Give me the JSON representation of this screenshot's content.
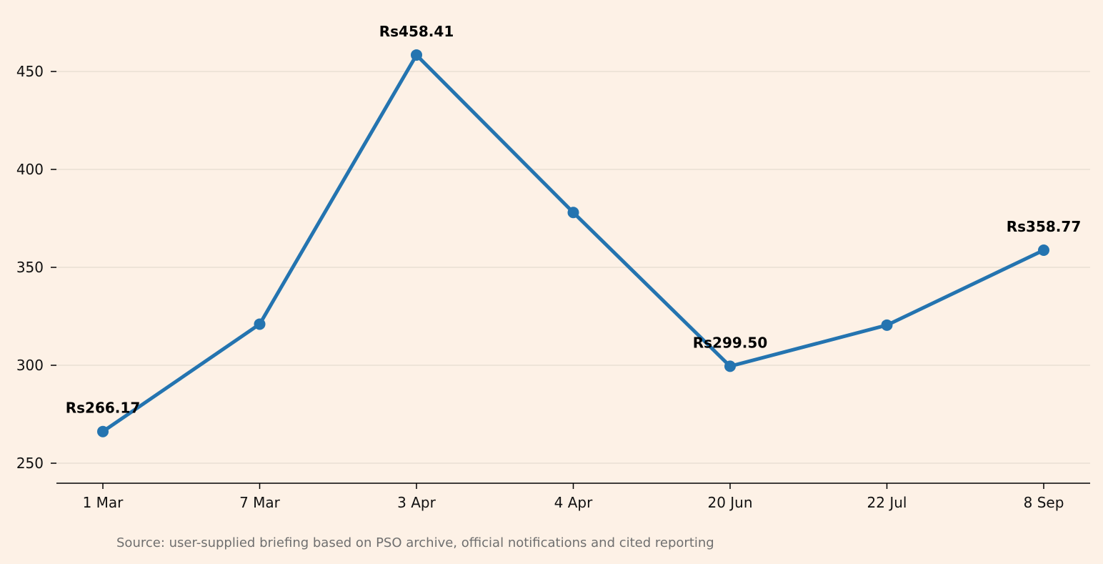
{
  "chart_data": {
    "type": "line",
    "categories": [
      "1 Mar",
      "7 Mar",
      "3 Apr",
      "4 Apr",
      "20 Jun",
      "22 Jul",
      "8 Sep"
    ],
    "series": [
      {
        "values": [
          266.17,
          321.0,
          458.41,
          378.0,
          299.5,
          320.5,
          358.77
        ],
        "color": "#2474b0"
      }
    ],
    "data_labels": [
      {
        "index": 0,
        "text": "Rs266.17"
      },
      {
        "index": 2,
        "text": "Rs458.41"
      },
      {
        "index": 4,
        "text": "Rs299.50"
      },
      {
        "index": 6,
        "text": "Rs358.77"
      }
    ],
    "ylim": [
      240,
      474
    ],
    "yticks": [
      250,
      300,
      350,
      400,
      450
    ],
    "grid": "horizontal",
    "title": "",
    "xlabel": "",
    "ylabel": ""
  },
  "source_note": "Source: user-supplied briefing based on PSO archive, official notifications and cited reporting",
  "colors": {
    "background": "#fdf1e6",
    "gridline": "#eadfd3",
    "axis": "#000000"
  }
}
